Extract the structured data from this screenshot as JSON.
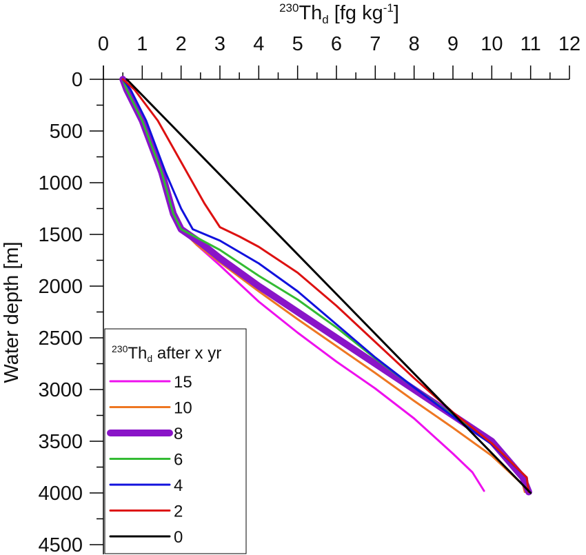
{
  "chart_data": {
    "type": "line",
    "xlabel": {
      "sup": "230",
      "main": "Th",
      "sub": "d",
      "unit": " [fg kg",
      "unit_sup": "-1",
      "unit_end": "]"
    },
    "ylabel": "Water depth [m]",
    "xlim": [
      0,
      12
    ],
    "ylim": [
      4500,
      0
    ],
    "x_ticks": [
      "0",
      "1",
      "2",
      "3",
      "4",
      "5",
      "6",
      "7",
      "8",
      "9",
      "10",
      "11",
      "12"
    ],
    "y_ticks": [
      "0",
      "500",
      "1000",
      "1500",
      "2000",
      "2500",
      "3000",
      "3500",
      "4000",
      "4500"
    ],
    "y_tick_values": [
      0,
      500,
      1000,
      1500,
      2000,
      2500,
      3000,
      3500,
      4000,
      4500
    ],
    "legend": {
      "title": {
        "sup": "230",
        "main": "Th",
        "sub": "d",
        "rest": " after x yr"
      },
      "placement": "bottom-left"
    },
    "series": [
      {
        "name": "15",
        "color": "#ee10ee",
        "width": 3,
        "points": [
          [
            0.5,
            0
          ],
          [
            0.6,
            100
          ],
          [
            1.0,
            400
          ],
          [
            1.5,
            900
          ],
          [
            1.8,
            1300
          ],
          [
            2.0,
            1450
          ],
          [
            2.4,
            1600
          ],
          [
            3.0,
            1800
          ],
          [
            4.0,
            2150
          ],
          [
            5.0,
            2450
          ],
          [
            6.0,
            2730
          ],
          [
            7.0,
            2990
          ],
          [
            8.0,
            3280
          ],
          [
            9.0,
            3620
          ],
          [
            9.5,
            3800
          ],
          [
            9.8,
            3980
          ]
        ]
      },
      {
        "name": "10",
        "color": "#ee7722",
        "width": 3,
        "points": [
          [
            0.5,
            0
          ],
          [
            0.6,
            100
          ],
          [
            1.0,
            400
          ],
          [
            1.5,
            900
          ],
          [
            1.8,
            1300
          ],
          [
            2.0,
            1450
          ],
          [
            2.4,
            1600
          ],
          [
            3.0,
            1770
          ],
          [
            4.0,
            2050
          ],
          [
            5.0,
            2320
          ],
          [
            6.0,
            2580
          ],
          [
            7.0,
            2840
          ],
          [
            8.0,
            3110
          ],
          [
            9.0,
            3370
          ],
          [
            10.0,
            3640
          ],
          [
            10.8,
            3920
          ],
          [
            10.85,
            3990
          ]
        ]
      },
      {
        "name": "8",
        "color": "#8a14c8",
        "width": 10,
        "points": [
          [
            0.5,
            0
          ],
          [
            0.6,
            100
          ],
          [
            1.0,
            400
          ],
          [
            1.5,
            900
          ],
          [
            1.8,
            1300
          ],
          [
            2.0,
            1450
          ],
          [
            2.5,
            1580
          ],
          [
            3.0,
            1730
          ],
          [
            4.0,
            2000
          ],
          [
            5.0,
            2250
          ],
          [
            6.0,
            2500
          ],
          [
            7.0,
            2750
          ],
          [
            8.0,
            3000
          ],
          [
            9.0,
            3250
          ],
          [
            10.0,
            3500
          ],
          [
            10.8,
            3850
          ],
          [
            10.95,
            3990
          ]
        ]
      },
      {
        "name": "6",
        "color": "#33bb33",
        "width": 3,
        "points": [
          [
            0.5,
            0
          ],
          [
            0.6,
            100
          ],
          [
            1.0,
            400
          ],
          [
            1.5,
            900
          ],
          [
            1.8,
            1300
          ],
          [
            2.0,
            1450
          ],
          [
            2.5,
            1550
          ],
          [
            3.0,
            1650
          ],
          [
            4.0,
            1900
          ],
          [
            5.0,
            2130
          ],
          [
            6.0,
            2400
          ],
          [
            7.0,
            2700
          ],
          [
            8.0,
            2980
          ],
          [
            9.0,
            3250
          ],
          [
            10.0,
            3520
          ],
          [
            10.9,
            3850
          ],
          [
            10.95,
            3990
          ]
        ]
      },
      {
        "name": "4",
        "color": "#1111dd",
        "width": 3,
        "points": [
          [
            0.5,
            0
          ],
          [
            0.7,
            100
          ],
          [
            1.1,
            400
          ],
          [
            1.6,
            900
          ],
          [
            2.0,
            1250
          ],
          [
            2.3,
            1450
          ],
          [
            3.0,
            1560
          ],
          [
            4.0,
            1780
          ],
          [
            5.0,
            2050
          ],
          [
            6.0,
            2370
          ],
          [
            7.0,
            2690
          ],
          [
            8.0,
            2980
          ],
          [
            9.0,
            3260
          ],
          [
            10.0,
            3530
          ],
          [
            10.9,
            3850
          ],
          [
            10.95,
            3990
          ]
        ]
      },
      {
        "name": "2",
        "color": "#dd1111",
        "width": 3,
        "points": [
          [
            0.5,
            0
          ],
          [
            0.8,
            100
          ],
          [
            1.4,
            400
          ],
          [
            2.0,
            800
          ],
          [
            2.6,
            1200
          ],
          [
            3.0,
            1430
          ],
          [
            3.5,
            1520
          ],
          [
            4.0,
            1620
          ],
          [
            5.0,
            1870
          ],
          [
            6.0,
            2190
          ],
          [
            7.0,
            2540
          ],
          [
            8.0,
            2890
          ],
          [
            9.0,
            3220
          ],
          [
            10.0,
            3520
          ],
          [
            10.9,
            3850
          ],
          [
            10.95,
            3990
          ]
        ]
      },
      {
        "name": "0",
        "color": "#000000",
        "width": 3,
        "points": [
          [
            0.6,
            0
          ],
          [
            11.0,
            4000
          ]
        ]
      }
    ]
  }
}
